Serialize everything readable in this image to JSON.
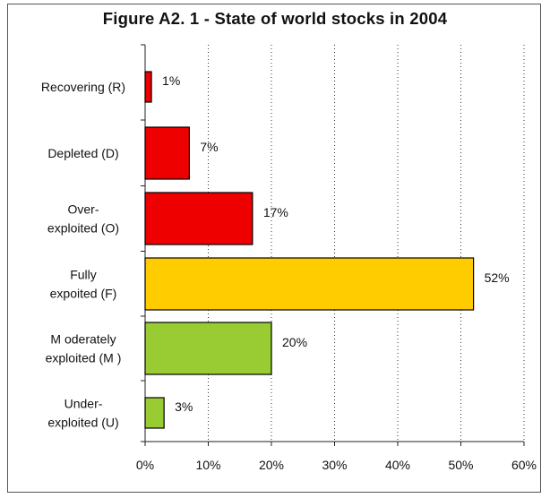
{
  "chart_data": {
    "type": "bar",
    "orientation": "horizontal",
    "title": "Figure A2. 1 - State of world stocks in 2004",
    "categories": [
      [
        "Recovering (R)"
      ],
      [
        "Depleted (D)"
      ],
      [
        "Over-",
        "exploited (O)"
      ],
      [
        "Fully",
        "expoited (F)"
      ],
      [
        "M oderately",
        "exploited (M )"
      ],
      [
        "Under-",
        "exploited (U)"
      ]
    ],
    "values": [
      1,
      7,
      17,
      52,
      20,
      3
    ],
    "value_labels": [
      "1%",
      "7%",
      "17%",
      "52%",
      "20%",
      "3%"
    ],
    "bar_colors": [
      "#ee0000",
      "#ee0000",
      "#ee0000",
      "#ffcc00",
      "#99cc33",
      "#99cc33"
    ],
    "xlim": [
      0,
      60
    ],
    "x_ticks": [
      0,
      10,
      20,
      30,
      40,
      50,
      60
    ],
    "x_tick_labels": [
      "0%",
      "10%",
      "20%",
      "30%",
      "40%",
      "50%",
      "60%"
    ],
    "grid": "vertical-dotted",
    "legend": "none"
  }
}
